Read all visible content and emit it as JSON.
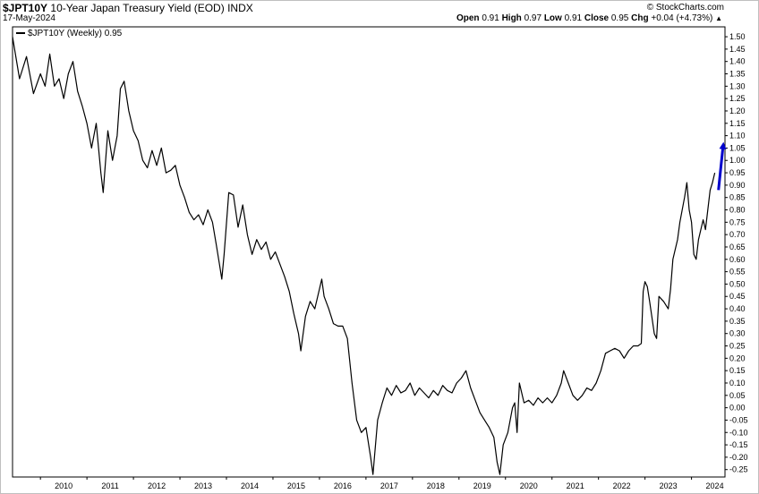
{
  "header": {
    "symbol": "$JPT10Y",
    "description": "10-Year Japan Treasury Yield (EOD)",
    "exchange": "INDX",
    "date": "17-May-2024",
    "brand": "© StockCharts.com",
    "open_label": "Open",
    "open": "0.91",
    "high_label": "High",
    "high": "0.97",
    "low_label": "Low",
    "low": "0.91",
    "close_label": "Close",
    "close": "0.95",
    "chg_label": "Chg",
    "chg": "+0.04 (+4.73%)",
    "chg_marker": "▲"
  },
  "legend": {
    "label": "$JPT10Y (Weekly) 0.95"
  },
  "colors": {
    "line": "#000000",
    "arrow": "#0000cc",
    "grid": "#e6e6e6"
  },
  "chart_data": {
    "type": "line",
    "series": [
      {
        "name": "$JPT10Y (Weekly)",
        "points": [
          [
            2009.4,
            1.5
          ],
          [
            2009.55,
            1.33
          ],
          [
            2009.7,
            1.42
          ],
          [
            2009.85,
            1.27
          ],
          [
            2010.0,
            1.35
          ],
          [
            2010.1,
            1.3
          ],
          [
            2010.2,
            1.43
          ],
          [
            2010.3,
            1.3
          ],
          [
            2010.4,
            1.33
          ],
          [
            2010.5,
            1.25
          ],
          [
            2010.6,
            1.35
          ],
          [
            2010.7,
            1.4
          ],
          [
            2010.8,
            1.28
          ],
          [
            2010.9,
            1.22
          ],
          [
            2011.0,
            1.15
          ],
          [
            2011.1,
            1.05
          ],
          [
            2011.2,
            1.15
          ],
          [
            2011.3,
            0.95
          ],
          [
            2011.35,
            0.87
          ],
          [
            2011.45,
            1.12
          ],
          [
            2011.55,
            1.0
          ],
          [
            2011.65,
            1.1
          ],
          [
            2011.72,
            1.29
          ],
          [
            2011.8,
            1.32
          ],
          [
            2011.9,
            1.2
          ],
          [
            2012.0,
            1.12
          ],
          [
            2012.1,
            1.08
          ],
          [
            2012.2,
            1.0
          ],
          [
            2012.3,
            0.97
          ],
          [
            2012.4,
            1.04
          ],
          [
            2012.5,
            0.98
          ],
          [
            2012.6,
            1.05
          ],
          [
            2012.7,
            0.95
          ],
          [
            2012.8,
            0.96
          ],
          [
            2012.9,
            0.98
          ],
          [
            2013.0,
            0.9
          ],
          [
            2013.1,
            0.85
          ],
          [
            2013.2,
            0.79
          ],
          [
            2013.3,
            0.76
          ],
          [
            2013.4,
            0.78
          ],
          [
            2013.5,
            0.74
          ],
          [
            2013.6,
            0.8
          ],
          [
            2013.7,
            0.75
          ],
          [
            2013.78,
            0.66
          ],
          [
            2013.85,
            0.58
          ],
          [
            2013.9,
            0.52
          ],
          [
            2013.95,
            0.62
          ],
          [
            2014.05,
            0.87
          ],
          [
            2014.15,
            0.86
          ],
          [
            2014.25,
            0.73
          ],
          [
            2014.35,
            0.82
          ],
          [
            2014.45,
            0.7
          ],
          [
            2014.55,
            0.62
          ],
          [
            2014.65,
            0.68
          ],
          [
            2014.75,
            0.64
          ],
          [
            2014.85,
            0.67
          ],
          [
            2014.95,
            0.6
          ],
          [
            2015.05,
            0.63
          ],
          [
            2015.15,
            0.58
          ],
          [
            2015.25,
            0.53
          ],
          [
            2015.35,
            0.47
          ],
          [
            2015.45,
            0.38
          ],
          [
            2015.55,
            0.3
          ],
          [
            2015.6,
            0.23
          ],
          [
            2015.7,
            0.37
          ],
          [
            2015.8,
            0.43
          ],
          [
            2015.9,
            0.4
          ],
          [
            2016.0,
            0.48
          ],
          [
            2016.05,
            0.52
          ],
          [
            2016.1,
            0.45
          ],
          [
            2016.2,
            0.4
          ],
          [
            2016.3,
            0.34
          ],
          [
            2016.4,
            0.33
          ],
          [
            2016.5,
            0.33
          ],
          [
            2016.6,
            0.28
          ],
          [
            2016.7,
            0.1
          ],
          [
            2016.8,
            -0.05
          ],
          [
            2016.9,
            -0.1
          ],
          [
            2017.0,
            -0.08
          ],
          [
            2017.1,
            -0.2
          ],
          [
            2017.15,
            -0.27
          ],
          [
            2017.25,
            -0.05
          ],
          [
            2017.35,
            0.02
          ],
          [
            2017.45,
            0.08
          ],
          [
            2017.55,
            0.05
          ],
          [
            2017.65,
            0.09
          ],
          [
            2017.75,
            0.06
          ],
          [
            2017.85,
            0.07
          ],
          [
            2017.95,
            0.1
          ],
          [
            2018.05,
            0.05
          ],
          [
            2018.15,
            0.08
          ],
          [
            2018.25,
            0.06
          ],
          [
            2018.35,
            0.04
          ],
          [
            2018.45,
            0.07
          ],
          [
            2018.55,
            0.05
          ],
          [
            2018.65,
            0.09
          ],
          [
            2018.75,
            0.07
          ],
          [
            2018.85,
            0.06
          ],
          [
            2018.95,
            0.1
          ],
          [
            2019.05,
            0.12
          ],
          [
            2019.15,
            0.15
          ],
          [
            2019.25,
            0.08
          ],
          [
            2019.35,
            0.03
          ],
          [
            2019.45,
            -0.02
          ],
          [
            2019.55,
            -0.05
          ],
          [
            2019.65,
            -0.08
          ],
          [
            2019.75,
            -0.12
          ],
          [
            2019.82,
            -0.22
          ],
          [
            2019.88,
            -0.27
          ],
          [
            2019.95,
            -0.15
          ],
          [
            2020.05,
            -0.1
          ],
          [
            2020.15,
            0.0
          ],
          [
            2020.2,
            0.02
          ],
          [
            2020.25,
            -0.1
          ],
          [
            2020.3,
            0.1
          ],
          [
            2020.4,
            0.02
          ],
          [
            2020.5,
            0.03
          ],
          [
            2020.6,
            0.01
          ],
          [
            2020.7,
            0.04
          ],
          [
            2020.8,
            0.02
          ],
          [
            2020.9,
            0.04
          ],
          [
            2021.0,
            0.02
          ],
          [
            2021.1,
            0.05
          ],
          [
            2021.2,
            0.1
          ],
          [
            2021.25,
            0.15
          ],
          [
            2021.35,
            0.1
          ],
          [
            2021.45,
            0.05
          ],
          [
            2021.55,
            0.03
          ],
          [
            2021.65,
            0.05
          ],
          [
            2021.75,
            0.08
          ],
          [
            2021.85,
            0.07
          ],
          [
            2021.95,
            0.1
          ],
          [
            2022.05,
            0.15
          ],
          [
            2022.15,
            0.22
          ],
          [
            2022.25,
            0.23
          ],
          [
            2022.35,
            0.24
          ],
          [
            2022.45,
            0.23
          ],
          [
            2022.55,
            0.2
          ],
          [
            2022.65,
            0.23
          ],
          [
            2022.75,
            0.25
          ],
          [
            2022.85,
            0.25
          ],
          [
            2022.92,
            0.26
          ],
          [
            2022.96,
            0.47
          ],
          [
            2023.0,
            0.51
          ],
          [
            2023.05,
            0.49
          ],
          [
            2023.1,
            0.43
          ],
          [
            2023.2,
            0.3
          ],
          [
            2023.25,
            0.28
          ],
          [
            2023.3,
            0.45
          ],
          [
            2023.4,
            0.43
          ],
          [
            2023.5,
            0.4
          ],
          [
            2023.55,
            0.48
          ],
          [
            2023.6,
            0.6
          ],
          [
            2023.7,
            0.68
          ],
          [
            2023.75,
            0.75
          ],
          [
            2023.85,
            0.85
          ],
          [
            2023.9,
            0.91
          ],
          [
            2023.95,
            0.8
          ],
          [
            2024.0,
            0.75
          ],
          [
            2024.05,
            0.62
          ],
          [
            2024.1,
            0.6
          ],
          [
            2024.15,
            0.68
          ],
          [
            2024.2,
            0.72
          ],
          [
            2024.25,
            0.76
          ],
          [
            2024.3,
            0.72
          ],
          [
            2024.35,
            0.8
          ],
          [
            2024.4,
            0.88
          ],
          [
            2024.45,
            0.91
          ],
          [
            2024.5,
            0.95
          ]
        ]
      }
    ],
    "x_ticks": [
      "2010",
      "2011",
      "2012",
      "2013",
      "2014",
      "2015",
      "2016",
      "2017",
      "2018",
      "2019",
      "2020",
      "2021",
      "2022",
      "2023",
      "2024"
    ],
    "y_ticks": [
      "1.50",
      "1.45",
      "1.40",
      "1.35",
      "1.30",
      "1.25",
      "1.20",
      "1.15",
      "1.10",
      "1.05",
      "1.00",
      "0.95",
      "0.90",
      "0.85",
      "0.80",
      "0.75",
      "0.70",
      "0.65",
      "0.60",
      "0.55",
      "0.50",
      "0.45",
      "0.40",
      "0.35",
      "0.30",
      "0.25",
      "0.20",
      "0.15",
      "0.10",
      "0.05",
      "0.00",
      "-0.05",
      "-0.10",
      "-0.15",
      "-0.20",
      "-0.25"
    ],
    "xlim": [
      2009.4,
      2024.72
    ],
    "ylim": [
      -0.28,
      1.54
    ],
    "annotation": {
      "type": "arrow",
      "from": [
        2024.58,
        0.88
      ],
      "to": [
        2024.68,
        1.06
      ]
    }
  }
}
